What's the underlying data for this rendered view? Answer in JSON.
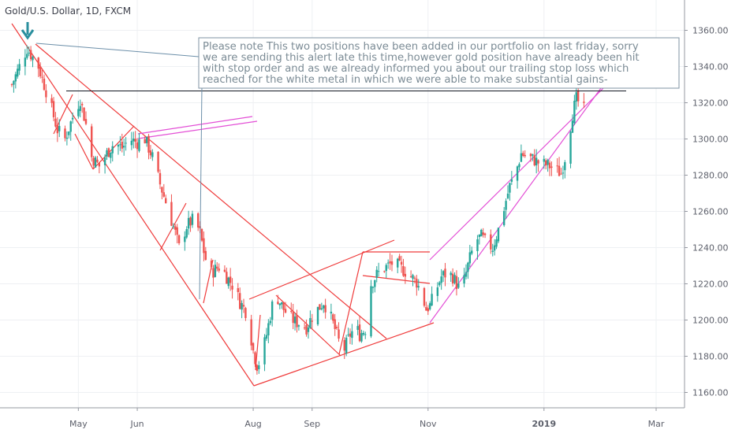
{
  "chart_data": {
    "type": "candlestick",
    "title": "Gold/U.S. Dollar, 1D, FXCM",
    "xlabel": "",
    "ylabel": "",
    "ylim": [
      1150,
      1370
    ],
    "y_ticks": [
      1160,
      1180,
      1200,
      1220,
      1240,
      1260,
      1280,
      1300,
      1320,
      1340,
      1360
    ],
    "y_tick_labels": [
      "1160.00",
      "1180.00",
      "1200.00",
      "1220.00",
      "1240.00",
      "1260.00",
      "1280.00",
      "1300.00",
      "1320.00",
      "1340.00",
      "1360.00"
    ],
    "x_range_days": [
      0,
      322
    ],
    "x_ticks": [
      {
        "day": 35,
        "label": "May"
      },
      {
        "day": 66,
        "label": "Jun"
      },
      {
        "day": 127,
        "label": "Aug"
      },
      {
        "day": 158,
        "label": "Sep"
      },
      {
        "day": 219,
        "label": "Nov"
      },
      {
        "day": 280,
        "label": "2019"
      },
      {
        "day": 339,
        "label": "Mar"
      }
    ],
    "price_path": [
      [
        0,
        1330
      ],
      [
        4,
        1340
      ],
      [
        8,
        1350
      ],
      [
        11,
        1345
      ],
      [
        14,
        1340
      ],
      [
        17,
        1330
      ],
      [
        20,
        1320
      ],
      [
        24,
        1305
      ],
      [
        28,
        1300
      ],
      [
        32,
        1312
      ],
      [
        36,
        1322
      ],
      [
        39,
        1308
      ],
      [
        42,
        1290
      ],
      [
        46,
        1285
      ],
      [
        50,
        1292
      ],
      [
        54,
        1298
      ],
      [
        58,
        1295
      ],
      [
        62,
        1300
      ],
      [
        66,
        1298
      ],
      [
        70,
        1300
      ],
      [
        74,
        1290
      ],
      [
        78,
        1275
      ],
      [
        82,
        1262
      ],
      [
        86,
        1248
      ],
      [
        88,
        1240
      ],
      [
        92,
        1252
      ],
      [
        96,
        1256
      ],
      [
        99,
        1248
      ],
      [
        101,
        1238
      ],
      [
        104,
        1225
      ],
      [
        107,
        1228
      ],
      [
        110,
        1230
      ],
      [
        113,
        1224
      ],
      [
        117,
        1218
      ],
      [
        120,
        1210
      ],
      [
        123,
        1205
      ],
      [
        125,
        1196
      ],
      [
        127,
        1183
      ],
      [
        129,
        1175
      ],
      [
        131,
        1178
      ],
      [
        134,
        1192
      ],
      [
        137,
        1208
      ],
      [
        140,
        1212
      ],
      [
        143,
        1206
      ],
      [
        146,
        1202
      ],
      [
        149,
        1199
      ],
      [
        152,
        1198
      ],
      [
        155,
        1196
      ],
      [
        158,
        1202
      ],
      [
        161,
        1206
      ],
      [
        164,
        1210
      ],
      [
        167,
        1204
      ],
      [
        170,
        1195
      ],
      [
        173,
        1185
      ],
      [
        175,
        1184
      ],
      [
        178,
        1192
      ],
      [
        181,
        1196
      ],
      [
        183,
        1192
      ],
      [
        186,
        1195
      ],
      [
        189,
        1220
      ],
      [
        192,
        1225
      ],
      [
        195,
        1228
      ],
      [
        198,
        1230
      ],
      [
        201,
        1232
      ],
      [
        204,
        1229
      ],
      [
        207,
        1227
      ],
      [
        210,
        1224
      ],
      [
        213,
        1221
      ],
      [
        216,
        1213
      ],
      [
        218,
        1206
      ],
      [
        220,
        1208
      ],
      [
        223,
        1216
      ],
      [
        226,
        1224
      ],
      [
        229,
        1226
      ],
      [
        232,
        1224
      ],
      [
        235,
        1218
      ],
      [
        238,
        1222
      ],
      [
        241,
        1234
      ],
      [
        244,
        1244
      ],
      [
        247,
        1246
      ],
      [
        250,
        1242
      ],
      [
        253,
        1240
      ],
      [
        256,
        1250
      ],
      [
        259,
        1262
      ],
      [
        262,
        1274
      ],
      [
        265,
        1281
      ],
      [
        268,
        1292
      ],
      [
        271,
        1290
      ],
      [
        274,
        1289
      ],
      [
        277,
        1287
      ],
      [
        280,
        1286
      ],
      [
        283,
        1285
      ],
      [
        286,
        1283
      ],
      [
        289,
        1281
      ],
      [
        292,
        1294
      ],
      [
        295,
        1314
      ],
      [
        297,
        1322
      ],
      [
        299,
        1319
      ],
      [
        301,
        1316
      ]
    ],
    "annotations": [
      {
        "type": "note",
        "text": [
          "Please note This two positions have been added in our portfolio on last friday, sorry",
          "we are sending this alert late this time,however gold position have already been hit",
          "with stop order and as we already informed you about our trailing stop loss which",
          "reached for the white metal in which we were able to make substantial gains-"
        ]
      },
      {
        "type": "horizontal_line",
        "price": 1326.5,
        "color": "#131722"
      },
      {
        "type": "arrow_marker",
        "color": "#2a8f9e"
      }
    ],
    "colors": {
      "up": "#26a69a",
      "down": "#ef5350",
      "trend_lines": "#ef3b3b",
      "channel_lines": "#e34fd6",
      "grid": "#eef0f3",
      "axis_text": "#5d606b",
      "note_border": "#7f93a3",
      "note_connector": "#6c8fa9"
    },
    "grid": true
  }
}
